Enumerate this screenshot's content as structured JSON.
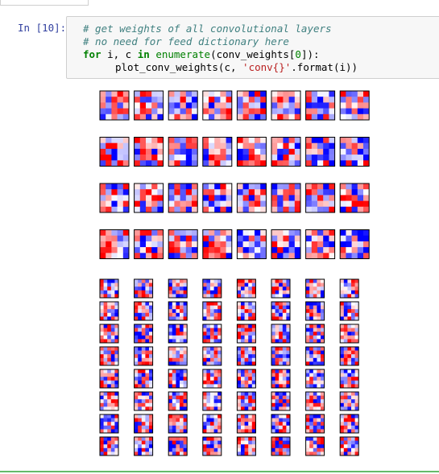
{
  "cell": {
    "prompt": "In [10]:",
    "code": {
      "comment1": "# get weights of all convolutional layers",
      "comment2": "# no need for feed dictionary here",
      "kw_for": "for",
      "var_i": " i, c ",
      "kw_in": "in",
      "fn_enumerate": "enumerate",
      "open": "(conv_weights[",
      "num0": "0",
      "close": "]):",
      "call": "plot_conv_weights(c, ",
      "str": "'conv{}'",
      "tail": ".format(i))"
    }
  },
  "colors": {
    "accent_blue": "#303f9f",
    "cell_bg": "#f7f7f7",
    "cell_border": "#cfcfcf",
    "heatmap_low": "#0000ff",
    "heatmap_mid": "#ffffff",
    "heatmap_high": "#ff0000",
    "output_bar": "#66bb6a"
  },
  "figures": [
    {
      "rows": 4,
      "cols": 8,
      "grid": 5,
      "cmap": "bwr"
    },
    {
      "rows": 8,
      "cols": 8,
      "grid": 5,
      "cmap": "bwr"
    }
  ]
}
